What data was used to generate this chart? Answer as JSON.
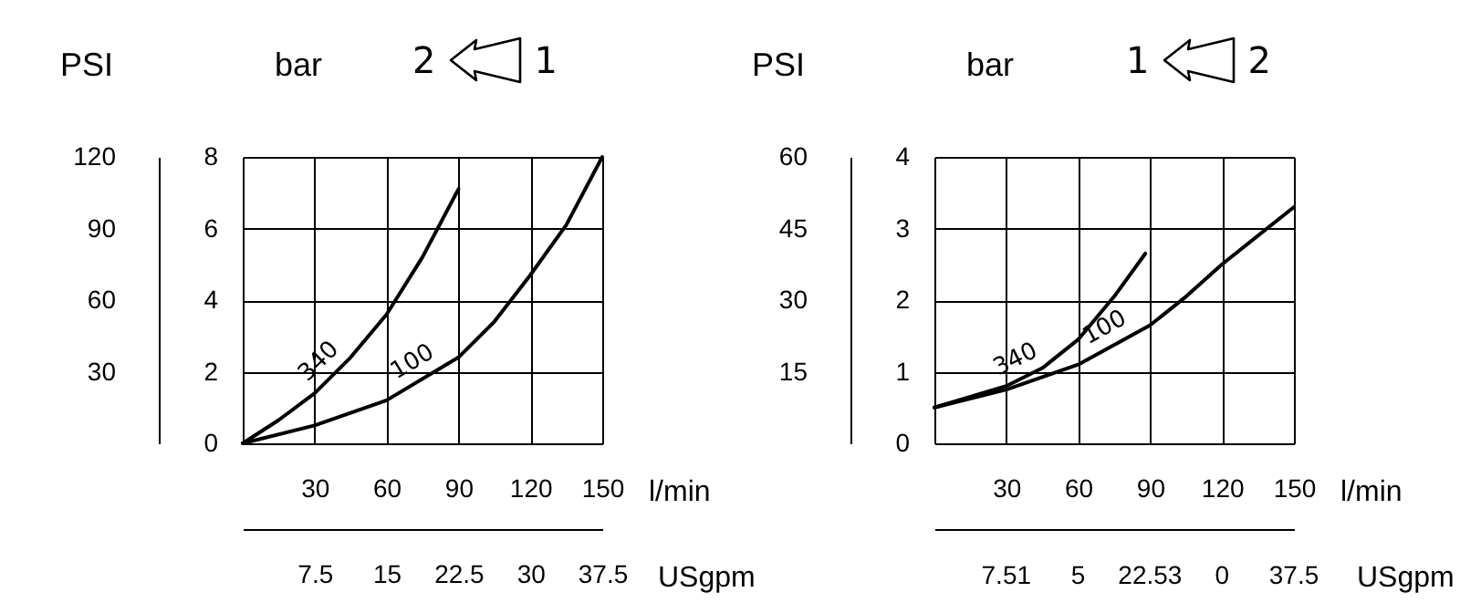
{
  "chart_data": [
    {
      "type": "line",
      "annotations": [
        "2",
        "1"
      ],
      "xlabel": "l/min",
      "ylabel": "bar",
      "y2label": "PSI",
      "x2label": "USgpm",
      "xlim": [
        0,
        150
      ],
      "xticks": [
        30,
        60,
        90,
        120,
        150
      ],
      "ylim": [
        0,
        8
      ],
      "yticks": [
        0,
        2,
        4,
        6,
        8
      ],
      "y2lim": [
        0,
        120
      ],
      "y2ticks": [
        30,
        60,
        90,
        120
      ],
      "x2lim": [
        0,
        37.5
      ],
      "x2ticks": [
        {
          "value": 7.5,
          "label": "7.5"
        },
        {
          "value": 15,
          "label": "15"
        },
        {
          "value": 22.5,
          "label": "22.5"
        },
        {
          "value": 30,
          "label": "30"
        },
        {
          "value": 37.5,
          "label": "37.5"
        }
      ],
      "grid": true,
      "series": [
        {
          "name": "340",
          "color": "#000000",
          "x": [
            0,
            15,
            30,
            45,
            60,
            75,
            90
          ],
          "values": [
            0,
            0.65,
            1.4,
            2.4,
            3.6,
            5.2,
            7.1
          ]
        },
        {
          "name": "100",
          "color": "#000000",
          "x": [
            0,
            30,
            60,
            90,
            105,
            120,
            135,
            150
          ],
          "values": [
            0,
            0.5,
            1.2,
            2.4,
            3.4,
            4.7,
            6.1,
            8
          ]
        }
      ]
    },
    {
      "type": "line",
      "annotations": [
        "1",
        "2",
        "7.51",
        "5",
        "22.53",
        "0",
        "37.5"
      ],
      "xlabel": "l/min",
      "ylabel": "bar",
      "y2label": "PSI",
      "x2label": "USgpm",
      "xlim": [
        0,
        150
      ],
      "xticks": [
        30,
        60,
        90,
        120,
        150
      ],
      "ylim": [
        0,
        4
      ],
      "yticks": [
        0,
        1,
        2,
        3,
        4
      ],
      "y2lim": [
        0,
        60
      ],
      "y2ticks": [
        15,
        30,
        45,
        60
      ],
      "grid": true,
      "series": [
        {
          "name": "340",
          "color": "#000000",
          "x": [
            0,
            30,
            45,
            60,
            75,
            88
          ],
          "values": [
            0.5,
            0.8,
            1.05,
            1.45,
            2.05,
            2.65
          ]
        },
        {
          "name": "100",
          "color": "#000000",
          "x": [
            0,
            30,
            60,
            90,
            105,
            120,
            150
          ],
          "values": [
            0.5,
            0.75,
            1.1,
            1.65,
            2.05,
            2.5,
            3.3
          ]
        }
      ]
    }
  ]
}
